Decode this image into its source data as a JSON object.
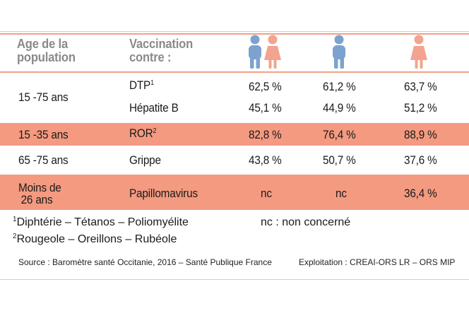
{
  "header": {
    "age_line1": "Age de la",
    "age_line2": "population",
    "vacc_line1": "Vaccination",
    "vacc_line2": "contre :",
    "icons": [
      "couple-icon",
      "man-icon",
      "woman-icon"
    ]
  },
  "colors": {
    "band": "#f39a80",
    "line": "#f2a088",
    "man": "#7da2cd",
    "woman": "#f2a491"
  },
  "rows": [
    {
      "age": "15 -75 ans",
      "vaccine": "DTP",
      "note_mark": "1",
      "total": "62,5 %",
      "men": "61,2 %",
      "women": "63,7 %"
    },
    {
      "age": "",
      "vaccine": "Hépatite B",
      "total": "45,1 %",
      "men": "44,9 %",
      "women": "51,2 %"
    },
    {
      "age": "15 -35 ans",
      "vaccine": "ROR",
      "note_mark": "2",
      "total": "82,8 %",
      "men": "76,4 %",
      "women": "88,9 %"
    },
    {
      "age": "65 -75 ans",
      "vaccine": "Grippe",
      "total": "43,8 %",
      "men": "50,7 %",
      "women": "37,6 %"
    },
    {
      "age_line1": "Moins de",
      "age_line2": "26 ans",
      "vaccine": "Papillomavirus",
      "total": "nc",
      "men": "nc",
      "women": "36,4 %"
    }
  ],
  "footnotes": {
    "n1_mark": "1",
    "n1_text": "Diphtérie  – Tétanos  – Poliomyélite",
    "nc_text": "nc  : non concerné",
    "n2_mark": "2",
    "n2_text": "Rougeole  – Oreillons  – Rubéole"
  },
  "source": {
    "left": "Source : Baromètre santé Occitanie, 2016  – Santé Publique France",
    "right": "Exploitation : CREAI-ORS LR – ORS MIP"
  }
}
